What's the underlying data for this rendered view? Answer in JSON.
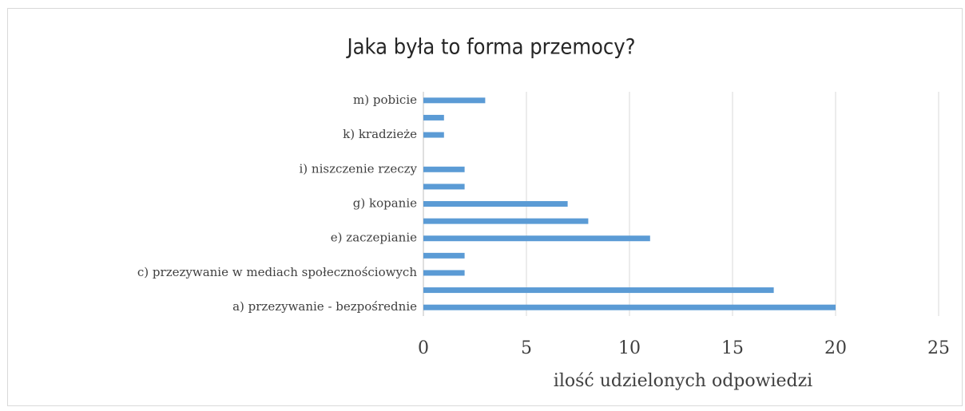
{
  "chart_data": {
    "type": "barh",
    "title": "Jaka była to forma przemocy?",
    "categories": [
      "a) przezywanie - bezpośrednie",
      null,
      "c) przezywanie w mediach społecznościowych",
      null,
      "e) zaczepianie",
      null,
      "g) kopanie",
      null,
      "i) niszczenie rzeczy",
      null,
      "k) kradzieże",
      null,
      "m) pobicie"
    ],
    "values": [
      20,
      17,
      2,
      2,
      11,
      8,
      7,
      2,
      2,
      0,
      1,
      1,
      3
    ],
    "color": "#5b9bd5",
    "xlabel": "ilość udzielonych odpowiedzi",
    "xlim": [
      0,
      25
    ],
    "xticks": [
      0,
      5,
      10,
      15,
      20,
      25
    ],
    "grid": true
  }
}
